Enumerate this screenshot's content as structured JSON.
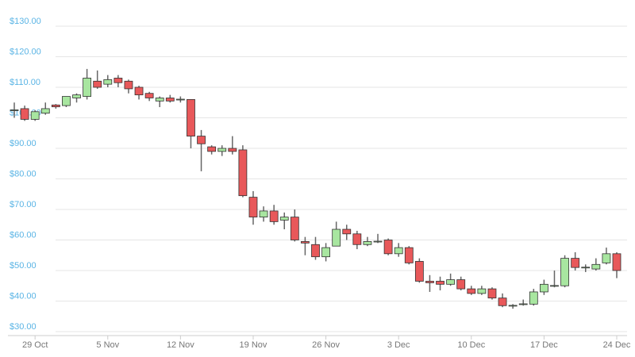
{
  "chart_data": {
    "type": "candlestick",
    "categories": [
      null,
      null,
      "29 Oct",
      null,
      null,
      null,
      null,
      null,
      null,
      "5 Nov",
      null,
      null,
      null,
      null,
      null,
      null,
      "12 Nov",
      null,
      null,
      null,
      null,
      null,
      null,
      "19 Nov",
      null,
      null,
      null,
      null,
      null,
      null,
      "26 Nov",
      null,
      null,
      null,
      null,
      null,
      null,
      "3 Dec",
      null,
      null,
      null,
      null,
      null,
      null,
      "10 Dec",
      null,
      null,
      null,
      null,
      null,
      null,
      "17 Dec",
      null,
      null,
      null,
      null,
      null,
      null,
      "24 Dec"
    ],
    "open": [
      102.5,
      103,
      99.5,
      101.5,
      104.2,
      104,
      106.5,
      107,
      112,
      111,
      113,
      112,
      110,
      108,
      105.5,
      106.5,
      106,
      106,
      94,
      90.5,
      89,
      90,
      89.5,
      74,
      67.5,
      69.5,
      66.5,
      67.5,
      59.5,
      58.5,
      54.5,
      58,
      63.5,
      62,
      58.5,
      59.5,
      60,
      55.5,
      57.5,
      53,
      46.5,
      46.5,
      45.5,
      47,
      44,
      42.5,
      44,
      41,
      38.5,
      39,
      39,
      43,
      45,
      45,
      54,
      51,
      50.5,
      52.5,
      55.5
    ],
    "high": [
      105,
      104,
      102.5,
      105,
      104.5,
      107,
      108,
      116,
      115.5,
      114,
      114,
      112.5,
      110.5,
      108.5,
      107,
      107.5,
      107,
      106,
      96,
      91,
      91,
      94,
      91,
      76,
      71,
      71.5,
      69,
      70,
      61,
      61,
      59,
      66,
      65,
      63,
      61,
      62,
      60.5,
      59,
      58,
      54,
      48.5,
      48,
      49,
      48,
      45,
      45,
      44.5,
      42.5,
      39,
      40.5,
      44,
      47,
      50,
      55,
      56,
      52,
      54,
      57.5,
      56
    ],
    "low": [
      100,
      99,
      99,
      101,
      103,
      103.5,
      105,
      106,
      109.5,
      110,
      110,
      108,
      106,
      105.5,
      103.5,
      105,
      105,
      90,
      82.5,
      88,
      87.5,
      88,
      74,
      65,
      66,
      65,
      63.5,
      59.5,
      55,
      53.5,
      53,
      58,
      60,
      57,
      58,
      59,
      55,
      54.5,
      52,
      46,
      43,
      43.5,
      45,
      43.5,
      42,
      42,
      40.5,
      38,
      37.5,
      38.5,
      38.5,
      42,
      44.5,
      44.5,
      50,
      49.5,
      50,
      52,
      47.5
    ],
    "close": [
      102.6,
      99.5,
      102,
      103,
      103.6,
      107,
      107.5,
      113,
      110,
      112.5,
      111.5,
      109.5,
      107.5,
      106.5,
      106.5,
      105.5,
      106.1,
      94,
      91.5,
      89,
      90,
      89,
      74.5,
      67.5,
      69.5,
      66,
      67.5,
      60,
      59,
      54.5,
      57.5,
      63.5,
      62,
      58.5,
      59.5,
      59.6,
      55.5,
      57.5,
      52.5,
      46.5,
      46,
      45.5,
      47,
      44,
      42.5,
      44,
      41,
      38.5,
      38.6,
      39.1,
      43,
      45.5,
      45.1,
      54,
      51,
      51.1,
      52,
      55.5,
      50
    ],
    "up_color": "#a8e6a0",
    "down_color": "#e8585a",
    "ylim": [
      30,
      130
    ],
    "yticks": [
      {
        "value": 30,
        "label": "$30.00"
      },
      {
        "value": 40,
        "label": "$40.00"
      },
      {
        "value": 50,
        "label": "$50.00"
      },
      {
        "value": 60,
        "label": "$60.00"
      },
      {
        "value": 70,
        "label": "$70.00"
      },
      {
        "value": 80,
        "label": "$80.00"
      },
      {
        "value": 90,
        "label": "$90.00"
      },
      {
        "value": 100,
        "label": "$100.00"
      },
      {
        "value": 110,
        "label": "$110.00"
      },
      {
        "value": 120,
        "label": "$120.00"
      },
      {
        "value": 130,
        "label": "$130.00"
      }
    ],
    "grid": true
  }
}
